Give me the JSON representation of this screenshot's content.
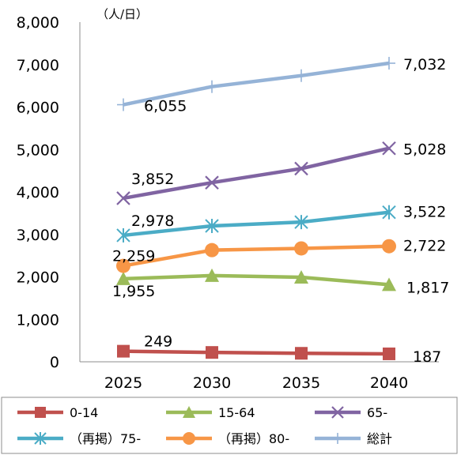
{
  "chart_data": {
    "type": "line",
    "unit_label": "（人/日）",
    "x": [
      "2025",
      "2030",
      "2035",
      "2040"
    ],
    "ylim": [
      0,
      8000
    ],
    "yticks": [
      "0",
      "1,000",
      "2,000",
      "3,000",
      "4,000",
      "5,000",
      "6,000",
      "7,000",
      "8,000"
    ],
    "grid": false,
    "legend_position": "bottom",
    "series": [
      {
        "name": "0-14",
        "values": [
          249,
          220,
          200,
          187
        ],
        "color": "#c0504d",
        "marker": "square",
        "labels": [
          {
            "index": 0,
            "text": "249"
          },
          {
            "index": 3,
            "text": "187"
          }
        ]
      },
      {
        "name": "15-64",
        "values": [
          1955,
          2030,
          1990,
          1817
        ],
        "color": "#9bbb59",
        "marker": "triangle",
        "labels": [
          {
            "index": 0,
            "text": "1,955"
          },
          {
            "index": 3,
            "text": "1,817"
          }
        ]
      },
      {
        "name": "65-",
        "values": [
          3852,
          4220,
          4550,
          5028
        ],
        "color": "#8064a2",
        "marker": "x",
        "labels": [
          {
            "index": 0,
            "text": "3,852"
          },
          {
            "index": 3,
            "text": "5,028"
          }
        ]
      },
      {
        "name": "（再掲）75-",
        "values": [
          2978,
          3200,
          3290,
          3522
        ],
        "color": "#4bacc6",
        "marker": "star",
        "labels": [
          {
            "index": 0,
            "text": "2,978"
          },
          {
            "index": 3,
            "text": "3,522"
          }
        ]
      },
      {
        "name": "（再掲）80-",
        "values": [
          2259,
          2630,
          2670,
          2722
        ],
        "color": "#f79646",
        "marker": "circle",
        "labels": [
          {
            "index": 0,
            "text": "2,259"
          },
          {
            "index": 3,
            "text": "2,722"
          }
        ]
      },
      {
        "name": "総計",
        "values": [
          6055,
          6480,
          6740,
          7032
        ],
        "color": "#95b3d7",
        "marker": "plus",
        "labels": [
          {
            "index": 0,
            "text": "6,055"
          },
          {
            "index": 3,
            "text": "7,032"
          }
        ]
      }
    ]
  }
}
